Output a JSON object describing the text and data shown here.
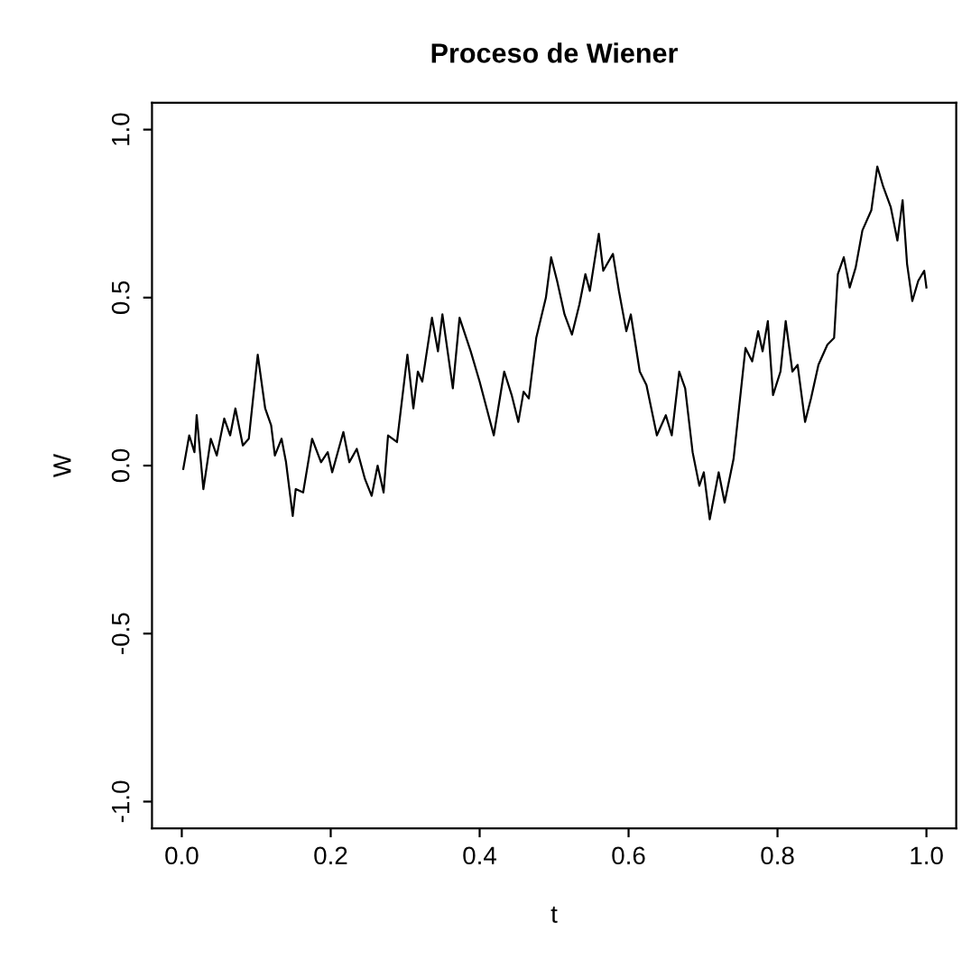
{
  "chart_data": {
    "type": "line",
    "title": "Proceso de Wiener",
    "xlabel": "t",
    "ylabel": "W",
    "x": [
      0.002,
      0.01,
      0.017,
      0.02,
      0.029,
      0.039,
      0.047,
      0.057,
      0.065,
      0.072,
      0.082,
      0.09,
      0.102,
      0.112,
      0.12,
      0.125,
      0.134,
      0.14,
      0.149,
      0.153,
      0.163,
      0.175,
      0.187,
      0.196,
      0.202,
      0.217,
      0.225,
      0.235,
      0.246,
      0.255,
      0.263,
      0.271,
      0.277,
      0.289,
      0.303,
      0.311,
      0.317,
      0.323,
      0.336,
      0.344,
      0.35,
      0.364,
      0.373,
      0.388,
      0.4,
      0.419,
      0.433,
      0.443,
      0.452,
      0.459,
      0.466,
      0.476,
      0.489,
      0.496,
      0.504,
      0.514,
      0.524,
      0.534,
      0.542,
      0.548,
      0.56,
      0.566,
      0.579,
      0.587,
      0.597,
      0.603,
      0.615,
      0.624,
      0.638,
      0.65,
      0.658,
      0.668,
      0.676,
      0.686,
      0.695,
      0.701,
      0.709,
      0.721,
      0.729,
      0.741,
      0.757,
      0.766,
      0.774,
      0.78,
      0.787,
      0.794,
      0.804,
      0.811,
      0.82,
      0.827,
      0.837,
      0.845,
      0.855,
      0.867,
      0.876,
      0.881,
      0.889,
      0.897,
      0.905,
      0.914,
      0.926,
      0.934,
      0.942,
      0.952,
      0.961,
      0.968,
      0.974,
      0.981,
      0.989,
      0.997,
      1.0
    ],
    "series": [
      {
        "color": "#000000",
        "values": [
          -0.01,
          0.09,
          0.04,
          0.15,
          -0.07,
          0.08,
          0.03,
          0.14,
          0.09,
          0.17,
          0.06,
          0.08,
          0.33,
          0.17,
          0.12,
          0.03,
          0.08,
          0.01,
          -0.15,
          -0.07,
          -0.08,
          0.08,
          0.01,
          0.04,
          -0.02,
          0.1,
          0.01,
          0.05,
          -0.04,
          -0.09,
          0.0,
          -0.08,
          0.09,
          0.07,
          0.33,
          0.17,
          0.28,
          0.25,
          0.44,
          0.34,
          0.45,
          0.23,
          0.44,
          0.34,
          0.25,
          0.09,
          0.28,
          0.21,
          0.13,
          0.22,
          0.2,
          0.38,
          0.5,
          0.62,
          0.55,
          0.45,
          0.39,
          0.48,
          0.57,
          0.52,
          0.69,
          0.58,
          0.63,
          0.52,
          0.4,
          0.45,
          0.28,
          0.24,
          0.09,
          0.15,
          0.09,
          0.28,
          0.23,
          0.04,
          -0.06,
          -0.02,
          -0.16,
          -0.02,
          -0.11,
          0.02,
          0.35,
          0.31,
          0.4,
          0.34,
          0.43,
          0.21,
          0.28,
          0.43,
          0.28,
          0.3,
          0.13,
          0.2,
          0.3,
          0.36,
          0.38,
          0.57,
          0.62,
          0.53,
          0.59,
          0.7,
          0.76,
          0.89,
          0.83,
          0.77,
          0.67,
          0.79,
          0.6,
          0.49,
          0.55,
          0.58,
          0.53
        ]
      }
    ],
    "xlim": [
      -0.04,
      1.04
    ],
    "ylim": [
      -1.08,
      1.08
    ],
    "xticks": [
      {
        "value": 0,
        "label": "0.0"
      },
      0.2,
      0.4,
      0.6,
      0.8,
      {
        "value": 1,
        "label": "1.0"
      }
    ],
    "yticks": [
      {
        "value": -1,
        "label": "-1.0"
      },
      -0.5,
      {
        "value": 0,
        "label": "0.0"
      },
      0.5,
      {
        "value": 1,
        "label": "1.0"
      }
    ],
    "grid": false,
    "marker": "none",
    "line_style": "solid"
  }
}
